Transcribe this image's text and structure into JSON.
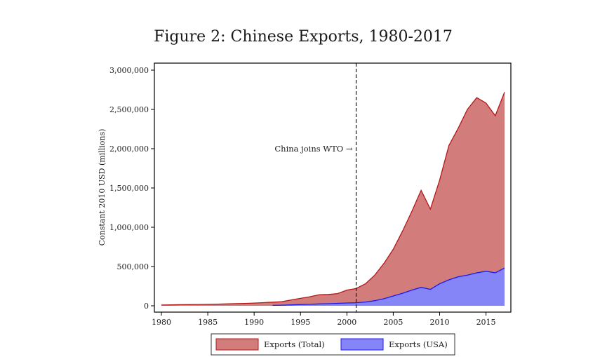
{
  "chart_data": {
    "type": "area",
    "title": "Figure 2:  Chinese Exports, 1980-2017",
    "xlabel": "",
    "ylabel": "Constant 2010 USD (millions)",
    "xlim": [
      1980,
      2017
    ],
    "ylim": [
      0,
      3000000
    ],
    "x_ticks": [
      1980,
      1985,
      1990,
      1995,
      2000,
      2005,
      2010,
      2015
    ],
    "x_tick_labels": [
      "1980",
      "1985",
      "1990",
      "1995",
      "2000",
      "2005",
      "2010",
      "2015"
    ],
    "y_ticks": [
      0,
      500000,
      1000000,
      1500000,
      2000000,
      2500000,
      3000000
    ],
    "y_tick_labels": [
      "0",
      "500,000",
      "1,000,000",
      "1,500,000",
      "2,000,000",
      "2,500,000",
      "3,000,000"
    ],
    "grid": false,
    "legend_position": "bottom",
    "annotation": {
      "text": "China joins WTO →",
      "x": 2001
    },
    "x": [
      1980,
      1981,
      1982,
      1983,
      1984,
      1985,
      1986,
      1987,
      1988,
      1989,
      1990,
      1991,
      1992,
      1993,
      1994,
      1995,
      1996,
      1997,
      1998,
      1999,
      2000,
      2001,
      2002,
      2003,
      2004,
      2005,
      2006,
      2007,
      2008,
      2009,
      2010,
      2011,
      2012,
      2013,
      2014,
      2015,
      2016,
      2017
    ],
    "series": [
      {
        "name": "Exports (Total)",
        "fill": "#d37c7c",
        "stroke": "#b01818",
        "values": [
          10000,
          12000,
          14000,
          15000,
          17000,
          19000,
          21000,
          24000,
          28000,
          30000,
          35000,
          40000,
          46000,
          52000,
          75000,
          95000,
          115000,
          140000,
          145000,
          155000,
          200000,
          220000,
          280000,
          390000,
          540000,
          720000,
          950000,
          1200000,
          1470000,
          1230000,
          1600000,
          2040000,
          2260000,
          2500000,
          2650000,
          2580000,
          2420000,
          2720000
        ]
      },
      {
        "name": "Exports (USA)",
        "fill": "#8585f8",
        "stroke": "#1a1af0",
        "start_x": 1992,
        "values": [
          null,
          null,
          null,
          null,
          null,
          null,
          null,
          null,
          null,
          null,
          null,
          null,
          5000,
          8000,
          12000,
          16000,
          19000,
          24000,
          27000,
          31000,
          36000,
          38000,
          48000,
          65000,
          90000,
          125000,
          160000,
          200000,
          235000,
          210000,
          280000,
          330000,
          370000,
          390000,
          420000,
          440000,
          420000,
          480000
        ]
      }
    ]
  }
}
